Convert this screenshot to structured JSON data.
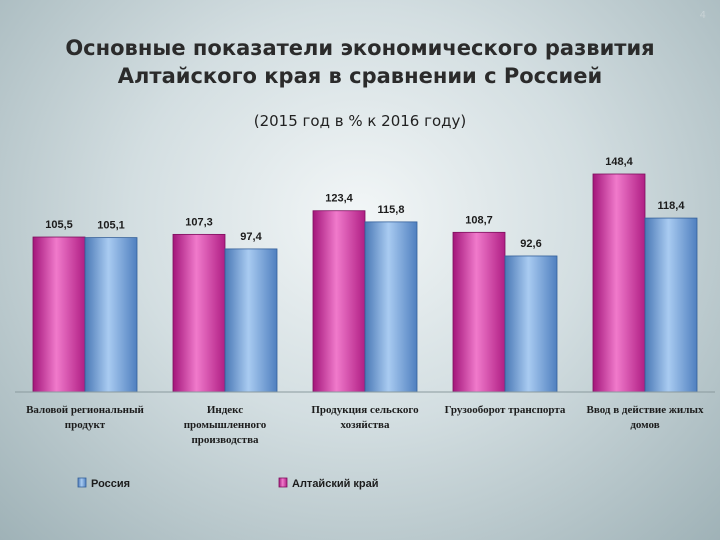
{
  "page_number": "4",
  "title_lines": [
    "Основные показатели экономического развития",
    "Алтайского края в сравнении с Россией"
  ],
  "subtitle": "(2015 год в % к 2016 году)",
  "colors": {
    "altai": "#e040a8",
    "russia": "#6f9fd6"
  },
  "chart_data": {
    "type": "bar",
    "categories": [
      [
        "Валовой региональный",
        "продукт"
      ],
      [
        "Индекс",
        "промышленного",
        "производства"
      ],
      [
        "Продукция сельского",
        "хозяйства"
      ],
      [
        "Грузооборот транспорта"
      ],
      [
        "Ввод в действие жилых",
        "домов"
      ]
    ],
    "series": [
      {
        "name": "Алтайский край",
        "values": [
          105.5,
          107.3,
          123.4,
          108.7,
          148.4
        ],
        "labels": [
          "105,5",
          "107,3",
          "123,4",
          "108,7",
          "148,4"
        ]
      },
      {
        "name": "Россия",
        "values": [
          105.1,
          97.4,
          115.8,
          92.6,
          118.4
        ],
        "labels": [
          "105,1",
          "97,4",
          "115,8",
          "92,6",
          "118,4"
        ]
      }
    ],
    "legend": [
      "Россия",
      "Алтайский край"
    ],
    "legend_position": "bottom",
    "ylim": [
      0,
      148.4
    ],
    "grid": false
  }
}
